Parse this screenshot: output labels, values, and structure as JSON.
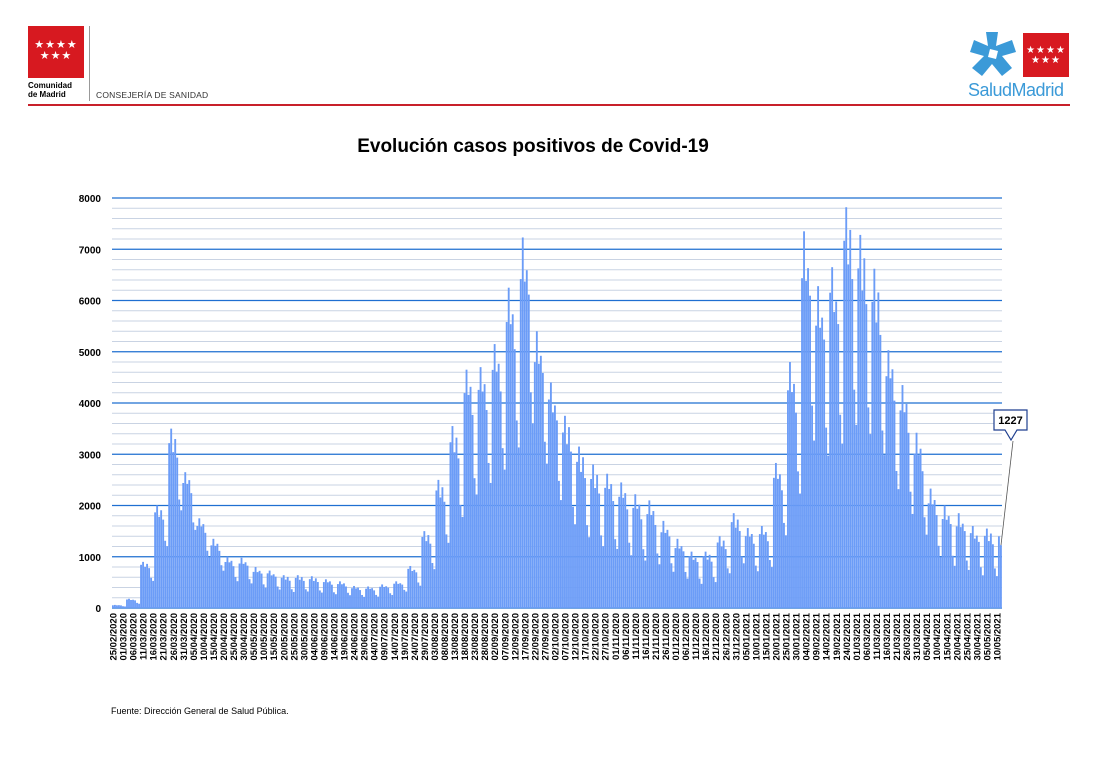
{
  "header": {
    "left_org_name": "Comunidad\nde Madrid",
    "department": "CONSEJERÍA DE SANIDAD",
    "right_brand": "SaludMadrid",
    "brand_red": "#d71920",
    "brand_blue": "#3b9ad8"
  },
  "source_note": "Fuente: Dirección General de Salud Pública.",
  "chart_data": {
    "type": "bar",
    "title": "Evolución casos positivos de Covid-19",
    "xlabel": "",
    "ylabel": "",
    "ylim": [
      0,
      8000
    ],
    "y_ticks": [
      0,
      1000,
      2000,
      3000,
      4000,
      5000,
      6000,
      7000,
      8000
    ],
    "minor_grid_step": 200,
    "bar_color": "#6b9cf7",
    "grid_major_color": "#1f6fd1",
    "grid_minor_color": "#c9d3e3",
    "x_start": "25/02/2020",
    "x_end": "12/05/2021",
    "x_tick_labels": [
      "25/02/2020",
      "01/03/2020",
      "06/03/2020",
      "11/03/2020",
      "16/03/2020",
      "21/03/2020",
      "26/03/2020",
      "31/03/2020",
      "05/04/2020",
      "10/04/2020",
      "15/04/2020",
      "20/04/2020",
      "25/04/2020",
      "30/04/2020",
      "05/05/2020",
      "10/05/2020",
      "15/05/2020",
      "20/05/2020",
      "25/05/2020",
      "30/05/2020",
      "04/06/2020",
      "09/06/2020",
      "14/06/2020",
      "19/06/2020",
      "24/06/2020",
      "29/06/2020",
      "04/07/2020",
      "09/07/2020",
      "14/07/2020",
      "19/07/2020",
      "24/07/2020",
      "29/07/2020",
      "03/08/2020",
      "08/08/2020",
      "13/08/2020",
      "18/08/2020",
      "23/08/2020",
      "28/08/2020",
      "02/09/2020",
      "07/09/2020",
      "12/09/2020",
      "17/09/2020",
      "22/09/2020",
      "27/09/2020",
      "02/10/2020",
      "07/10/2020",
      "12/10/2020",
      "17/10/2020",
      "22/10/2020",
      "27/10/2020",
      "01/11/2020",
      "06/11/2020",
      "11/11/2020",
      "16/11/2020",
      "21/11/2020",
      "26/11/2020",
      "01/12/2020",
      "06/12/2020",
      "11/12/2020",
      "16/12/2020",
      "21/12/2020",
      "26/12/2020",
      "31/12/2020",
      "05/01/2021",
      "10/01/2021",
      "15/01/2021",
      "20/01/2021",
      "25/01/2021",
      "30/01/2021",
      "04/02/2021",
      "09/02/2021",
      "14/02/2021",
      "19/02/2021",
      "24/02/2021",
      "01/03/2021",
      "06/03/2021",
      "11/03/2021",
      "16/03/2021",
      "21/03/2021",
      "26/03/2021",
      "31/03/2021",
      "05/04/2021",
      "10/04/2021",
      "15/04/2021",
      "20/04/2021",
      "25/04/2021",
      "30/04/2021",
      "05/05/2021",
      "10/05/2021"
    ],
    "series": [
      {
        "weekly_peaks": [
          60,
          180,
          900,
          2000,
          3500,
          2650,
          1750,
          1350,
          1000,
          980,
          800,
          730,
          640,
          640,
          620,
          560,
          520,
          430,
          420,
          460,
          520,
          820,
          1500,
          2500,
          3550,
          4650,
          4700,
          5150,
          6250,
          7230,
          5400,
          4400,
          3750,
          3150,
          2800,
          2620,
          2450,
          2220,
          2100,
          1700,
          1350,
          1100,
          1100,
          1400,
          1850,
          1560,
          1600,
          2830,
          4800,
          7350,
          6280,
          6650,
          7820,
          7280,
          6620,
          5030,
          4350,
          3420,
          2330,
          2000,
          1850,
          1600,
          1550,
          1550,
          1600,
          1820,
          2120,
          2200,
          2650,
          2920,
          2840,
          2750,
          2780,
          2750,
          2500,
          2350,
          2050,
          1227
        ],
        "weekly_troughs": [
          20,
          50,
          400,
          900,
          1300,
          1100,
          700,
          500,
          350,
          300,
          250,
          230,
          200,
          200,
          180,
          160,
          150,
          140,
          150,
          180,
          250,
          300,
          500,
          800,
          1100,
          1300,
          1600,
          1800,
          2000,
          2300,
          1900,
          1300,
          900,
          700,
          600,
          600,
          500,
          450,
          400,
          350,
          300,
          250,
          300,
          400,
          500,
          400,
          500,
          900,
          1300,
          1800,
          1800,
          2000,
          2100,
          1900,
          1600,
          1300,
          900,
          700,
          500,
          400,
          350,
          300,
          300,
          300,
          350,
          400,
          450,
          500,
          600,
          650,
          600,
          600,
          600,
          600,
          550,
          500,
          400,
          300
        ],
        "last_value": 1227
      }
    ],
    "annotation": {
      "label": "1227",
      "value": 1227
    }
  }
}
